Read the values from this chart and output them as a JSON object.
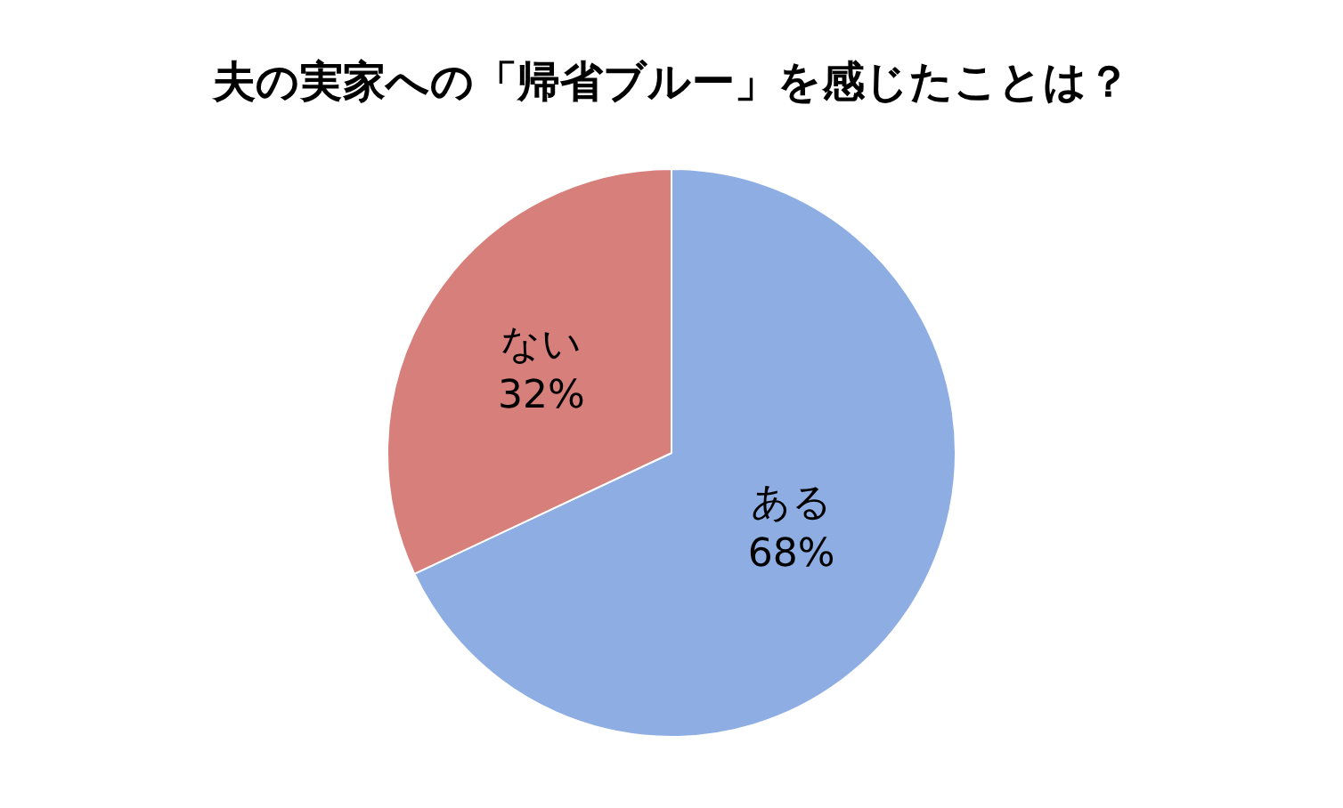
{
  "chart_data": {
    "type": "pie",
    "title": "夫の実家への「帰省ブルー」を感じたことは？",
    "categories": [
      "ある",
      "ない"
    ],
    "values": [
      68,
      32
    ],
    "value_labels": [
      "68%",
      "32%"
    ],
    "colors": [
      "#8eaee3",
      "#d77f7b"
    ],
    "legend": false
  }
}
